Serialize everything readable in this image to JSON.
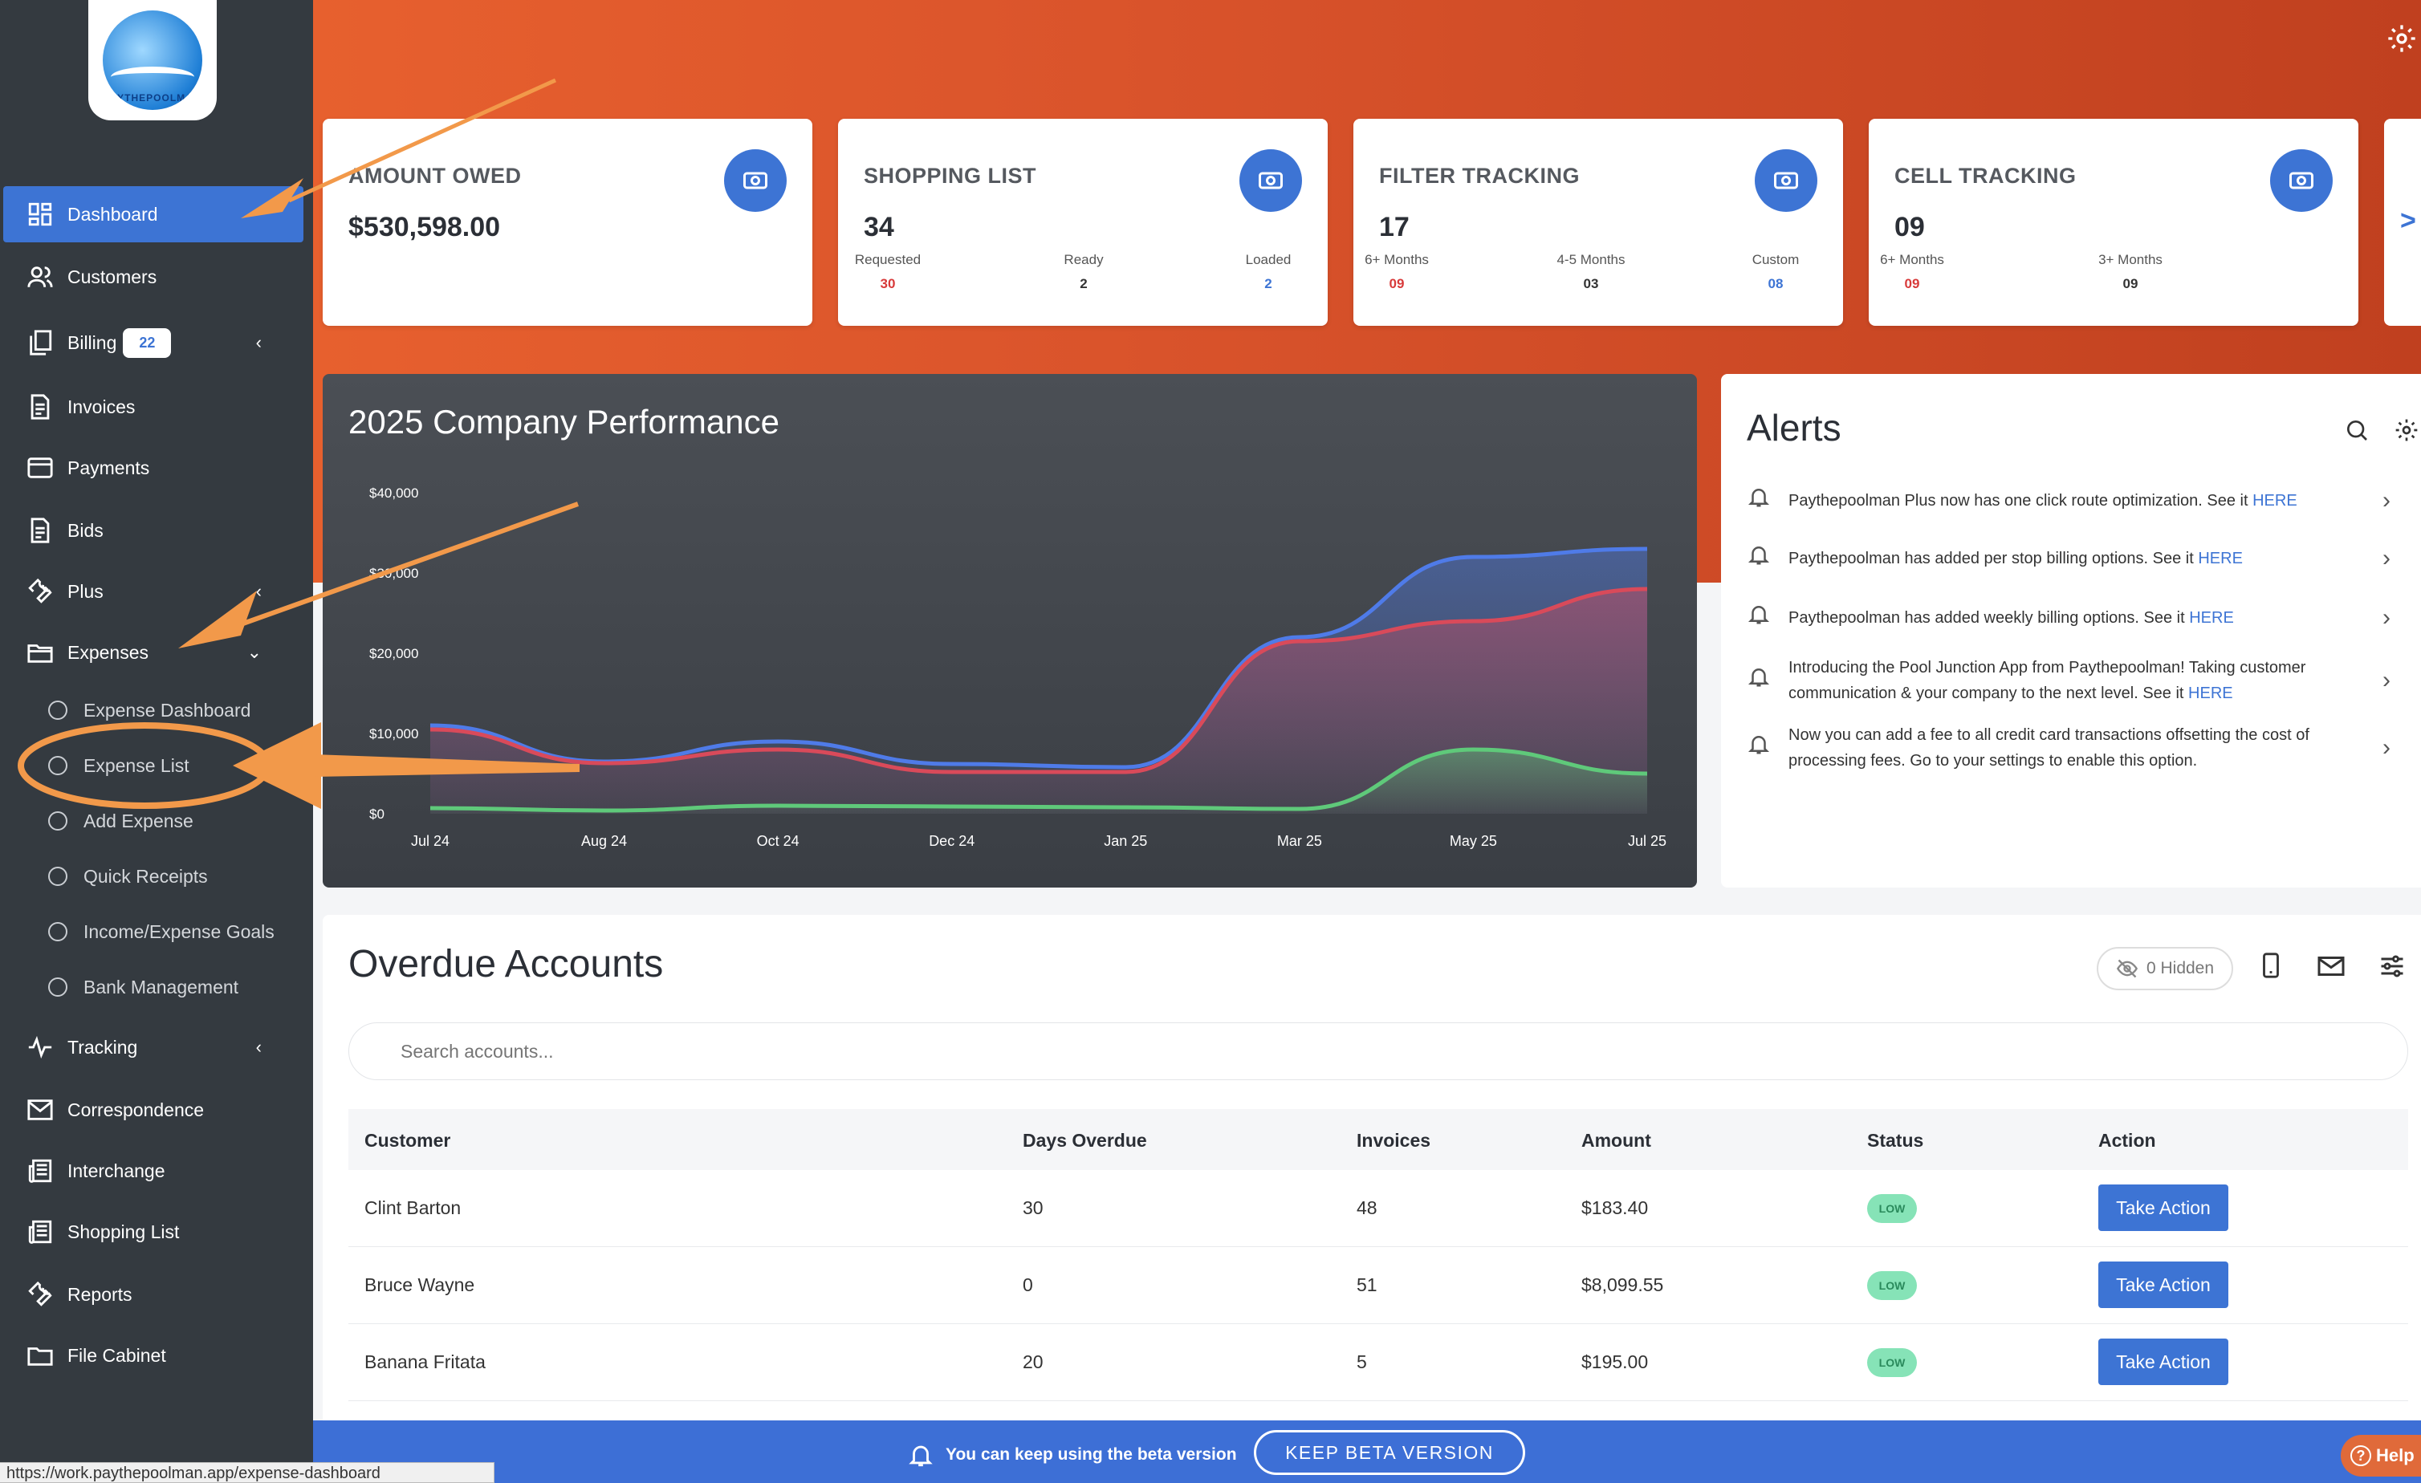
{
  "logo": {
    "brand": "PAYTHEPOOLMAN"
  },
  "sidebar": {
    "items": [
      {
        "label": "Dashboard",
        "icon": "grid-icon"
      },
      {
        "label": "Customers",
        "icon": "users-icon"
      },
      {
        "label": "Billing",
        "icon": "copy-icon",
        "badge": "22"
      },
      {
        "label": "Invoices",
        "icon": "file-icon"
      },
      {
        "label": "Payments",
        "icon": "card-icon"
      },
      {
        "label": "Bids",
        "icon": "file-icon"
      },
      {
        "label": "Plus",
        "icon": "wrench-icon"
      },
      {
        "label": "Expenses",
        "icon": "folder-icon"
      },
      {
        "label": "Tracking",
        "icon": "activity-icon"
      },
      {
        "label": "Correspondence",
        "icon": "mail-icon"
      },
      {
        "label": "Interchange",
        "icon": "newspaper-icon"
      },
      {
        "label": "Shopping List",
        "icon": "newspaper-icon"
      },
      {
        "label": "Reports",
        "icon": "wrench-icon"
      },
      {
        "label": "File Cabinet",
        "icon": "folder-icon"
      }
    ],
    "expenses_sub": [
      "Expense Dashboard",
      "Expense List",
      "Add Expense",
      "Quick Receipts",
      "Income/Expense Goals",
      "Bank Management"
    ]
  },
  "cards": {
    "owed": {
      "title": "AMOUNT OWED",
      "value": "$530,598.00"
    },
    "shopping": {
      "title": "SHOPPING LIST",
      "value": "34",
      "subs": [
        {
          "label": "Requested",
          "value": "30"
        },
        {
          "label": "Ready",
          "value": "2"
        },
        {
          "label": "Loaded",
          "value": "2"
        }
      ]
    },
    "filter": {
      "title": "FILTER TRACKING",
      "value": "17",
      "subs": [
        {
          "label": "6+ Months",
          "value": "09"
        },
        {
          "label": "4-5 Months",
          "value": "03"
        },
        {
          "label": "Custom",
          "value": "08"
        }
      ]
    },
    "cell": {
      "title": "CELL TRACKING",
      "value": "09",
      "subs": [
        {
          "label": "6+ Months",
          "value": "09"
        },
        {
          "label": "3+ Months",
          "value": "09"
        }
      ]
    },
    "next": ">"
  },
  "chart_data": {
    "type": "area",
    "title": "2025 Company Performance",
    "x": [
      "Jul 24",
      "Aug 24",
      "Oct 24",
      "Dec 24",
      "Jan 25",
      "Mar 25",
      "May 25",
      "Jul 25"
    ],
    "yticks": [
      "$0",
      "$10,000",
      "$20,000",
      "$30,000",
      "$40,000"
    ],
    "ylim": [
      0,
      40000
    ],
    "series": [
      {
        "color": "#4f7be8",
        "values": [
          11000,
          6500,
          9000,
          6200,
          5800,
          22000,
          32000,
          33000
        ]
      },
      {
        "color": "#d94a5a",
        "values": [
          10500,
          6300,
          8000,
          5200,
          5200,
          21500,
          24000,
          28000
        ]
      },
      {
        "color": "#5fc97a",
        "values": [
          700,
          400,
          1000,
          900,
          800,
          600,
          8000,
          5000
        ]
      }
    ]
  },
  "alerts": {
    "title": "Alerts",
    "items": [
      {
        "text": "Paythepoolman Plus now has one click route optimization. See it ",
        "link": "HERE"
      },
      {
        "text": "Paythepoolman has added per stop billing options. See it ",
        "link": "HERE"
      },
      {
        "text": "Paythepoolman has added weekly billing options. See it ",
        "link": "HERE"
      },
      {
        "text": "Introducing the Pool Junction App from Paythepoolman! Taking customer communication & your company to the next level. See it ",
        "link": "HERE"
      },
      {
        "text": "Now you can add a fee to all credit card transactions offsetting the cost of processing fees. Go to your settings to enable this option.",
        "link": ""
      }
    ]
  },
  "overdue": {
    "title": "Overdue Accounts",
    "hidden_label": "0 Hidden",
    "search_placeholder": "Search accounts...",
    "columns": [
      "Customer",
      "Days Overdue",
      "Invoices",
      "Amount",
      "Status",
      "Action"
    ],
    "rows": [
      {
        "customer": "Clint Barton",
        "days": "30",
        "invoices": "48",
        "amount": "$183.40",
        "status": "LOW",
        "action": "Take Action"
      },
      {
        "customer": "Bruce Wayne",
        "days": "0",
        "invoices": "51",
        "amount": "$8,099.55",
        "status": "LOW",
        "action": "Take Action"
      },
      {
        "customer": "Banana Fritata",
        "days": "20",
        "invoices": "5",
        "amount": "$195.00",
        "status": "LOW",
        "action": "Take Action"
      }
    ]
  },
  "beta": {
    "message": "You can keep using the beta version",
    "button": "KEEP BETA VERSION"
  },
  "help": "Help",
  "status_url": "https://work.paythepoolman.app/expense-dashboard"
}
